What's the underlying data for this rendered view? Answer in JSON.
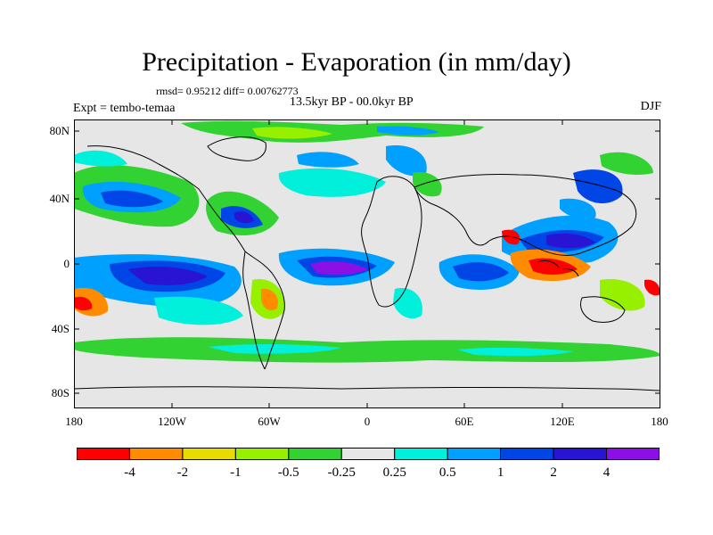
{
  "title": "Precipitation - Evaporation (in mm/day)",
  "stats": "rmsd= 0.95212 diff= 0.00762773",
  "period": "13.5kyr BP - 00.0kyr BP",
  "experiment": "Expt = tembo-temaa",
  "season": "DJF",
  "lat_labels": [
    "80N",
    "40N",
    "0",
    "40S",
    "80S"
  ],
  "lon_labels": [
    "180",
    "120W",
    "60W",
    "0",
    "60E",
    "120E",
    "180"
  ],
  "colorbar": {
    "labels": [
      "-4",
      "-2",
      "-1",
      "-0.5",
      "-0.25",
      "0.25",
      "0.5",
      "1",
      "2",
      "4"
    ],
    "colors": [
      "#ff0000",
      "#ff8c00",
      "#e6dc00",
      "#96f000",
      "#32d232",
      "#e6e6e6",
      "#00f0dc",
      "#00a0ff",
      "#0046e6",
      "#2814d2",
      "#8c0fe6"
    ]
  },
  "colors": {
    "ocean_background": "#e6e6e6",
    "coastline": "#000000"
  }
}
